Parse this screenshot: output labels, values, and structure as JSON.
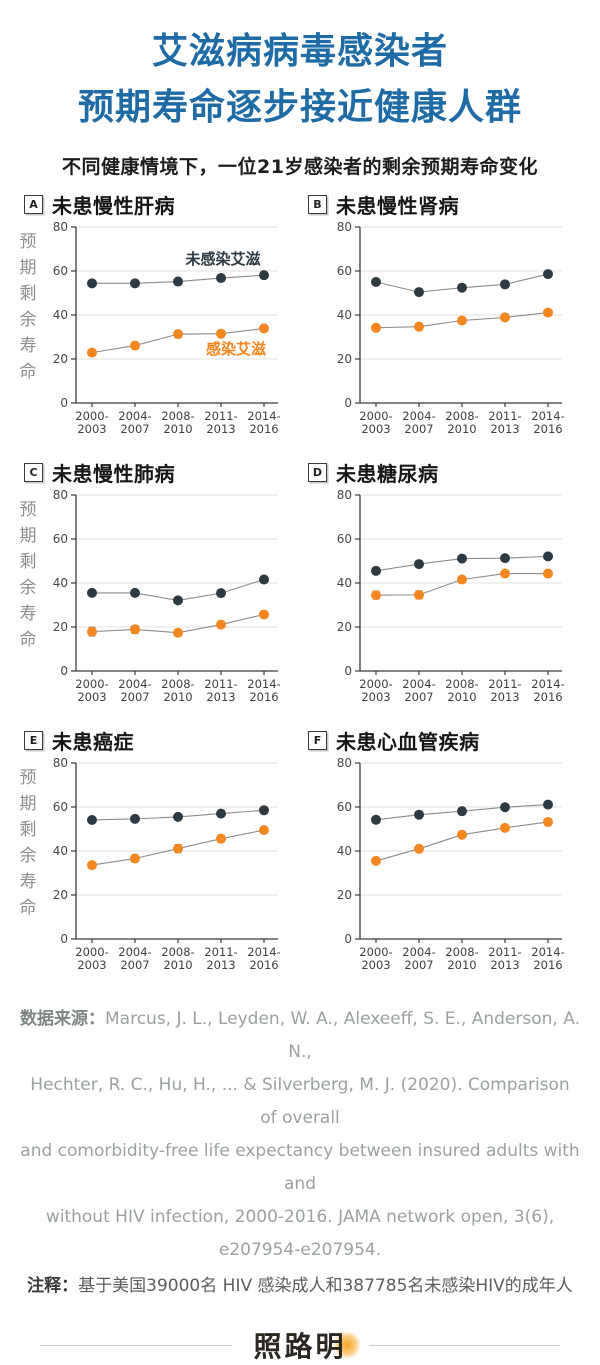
{
  "page": {
    "title_line1": "艾滋病病毒感染者",
    "title_line2": "预期寿命逐步接近健康人群",
    "subtitle": "不同健康情境下，一位21岁感染者的剩余预期寿命变化"
  },
  "colors": {
    "title_blue": "#1e6ba6",
    "uninfected": "#2d3a41",
    "infected": "#f58720",
    "series_line": "#8c8c8c",
    "error_bar": "#8c8c8c",
    "grid": "#e8e8e8",
    "axis": "#3b3b3b",
    "tick_label": "#474747"
  },
  "legend": {
    "uninfected_label": "未感染艾滋",
    "infected_label": "感染艾滋"
  },
  "axis": {
    "ylabel_chars": "预期剩余寿命",
    "ymax": 80,
    "yticks": [
      0,
      20,
      40,
      60,
      80
    ],
    "categories": [
      [
        "2000-",
        "2003"
      ],
      [
        "2004-",
        "2007"
      ],
      [
        "2008-",
        "2010"
      ],
      [
        "2011-",
        "2013"
      ],
      [
        "2014-",
        "2016"
      ]
    ]
  },
  "chart_data": [
    {
      "id": "A",
      "type": "line",
      "title": "未患慢性肝病",
      "show_ylabel": true,
      "show_legend": true,
      "xlabel": "",
      "ylabel": "预期剩余寿命",
      "ylim": [
        0,
        80
      ],
      "categories": [
        "2000-2003",
        "2004-2007",
        "2008-2010",
        "2011-2013",
        "2014-2016"
      ],
      "series": [
        {
          "name": "未感染艾滋",
          "values": [
            54.4,
            54.4,
            55.2,
            56.8,
            58.1
          ],
          "err": [
            0.6,
            0.6,
            0.6,
            0.6,
            0.6
          ]
        },
        {
          "name": "感染艾滋",
          "values": [
            22.9,
            26.1,
            31.3,
            31.5,
            33.9
          ],
          "err": [
            0.9,
            1.3,
            1.7,
            1.5,
            1.2
          ]
        }
      ]
    },
    {
      "id": "B",
      "type": "line",
      "title": "未患慢性肾病",
      "show_ylabel": false,
      "show_legend": false,
      "xlabel": "",
      "ylabel": "预期剩余寿命",
      "ylim": [
        0,
        80
      ],
      "categories": [
        "2000-2003",
        "2004-2007",
        "2008-2010",
        "2011-2013",
        "2014-2016"
      ],
      "series": [
        {
          "name": "未感染艾滋",
          "values": [
            55.0,
            50.4,
            52.4,
            53.9,
            58.6
          ],
          "err": [
            0.7,
            0.7,
            0.6,
            0.6,
            0.6
          ]
        },
        {
          "name": "感染艾滋",
          "values": [
            34.2,
            34.7,
            37.5,
            38.9,
            41.1
          ],
          "err": [
            1.5,
            1.2,
            1.3,
            1.2,
            1.2
          ]
        }
      ]
    },
    {
      "id": "C",
      "type": "line",
      "title": "未患慢性肺病",
      "show_ylabel": true,
      "show_legend": false,
      "xlabel": "",
      "ylabel": "预期剩余寿命",
      "ylim": [
        0,
        80
      ],
      "categories": [
        "2000-2003",
        "2004-2007",
        "2008-2010",
        "2011-2013",
        "2014-2016"
      ],
      "series": [
        {
          "name": "未感染艾滋",
          "values": [
            35.5,
            35.5,
            32.1,
            35.4,
            41.6
          ],
          "err": [
            1.0,
            1.0,
            1.0,
            1.0,
            1.0
          ]
        },
        {
          "name": "感染艾滋",
          "values": [
            17.9,
            18.9,
            17.4,
            21.1,
            25.7
          ],
          "err": [
            2.0,
            1.8,
            1.5,
            1.5,
            1.5
          ]
        }
      ]
    },
    {
      "id": "D",
      "type": "line",
      "title": "未患糖尿病",
      "show_ylabel": false,
      "show_legend": false,
      "xlabel": "",
      "ylabel": "预期剩余寿命",
      "ylim": [
        0,
        80
      ],
      "categories": [
        "2000-2003",
        "2004-2007",
        "2008-2010",
        "2011-2013",
        "2014-2016"
      ],
      "series": [
        {
          "name": "未感染艾滋",
          "values": [
            45.5,
            48.6,
            51.1,
            51.3,
            52.1
          ],
          "err": [
            0.7,
            0.7,
            0.6,
            0.6,
            0.6
          ]
        },
        {
          "name": "感染艾滋",
          "values": [
            34.5,
            34.6,
            41.6,
            44.3,
            44.3
          ],
          "err": [
            1.8,
            1.8,
            1.3,
            1.0,
            1.0
          ]
        }
      ]
    },
    {
      "id": "E",
      "type": "line",
      "title": "未患癌症",
      "show_ylabel": true,
      "show_legend": false,
      "xlabel": "",
      "ylabel": "预期剩余寿命",
      "ylim": [
        0,
        80
      ],
      "categories": [
        "2000-2003",
        "2004-2007",
        "2008-2010",
        "2011-2013",
        "2014-2016"
      ],
      "series": [
        {
          "name": "未感染艾滋",
          "values": [
            54.1,
            54.6,
            55.5,
            57.0,
            58.5
          ],
          "err": [
            0.6,
            0.6,
            0.6,
            0.6,
            0.6
          ]
        },
        {
          "name": "感染艾滋",
          "values": [
            33.6,
            36.6,
            41.1,
            45.6,
            49.5
          ],
          "err": [
            1.3,
            1.6,
            1.8,
            1.6,
            1.0
          ]
        }
      ]
    },
    {
      "id": "F",
      "type": "line",
      "title": "未患心血管疾病",
      "show_ylabel": false,
      "show_legend": false,
      "xlabel": "",
      "ylabel": "预期剩余寿命",
      "ylim": [
        0,
        80
      ],
      "categories": [
        "2000-2003",
        "2004-2007",
        "2008-2010",
        "2011-2013",
        "2014-2016"
      ],
      "series": [
        {
          "name": "未感染艾滋",
          "values": [
            54.2,
            56.5,
            58.1,
            59.9,
            61.1
          ],
          "err": [
            0.6,
            0.6,
            0.6,
            0.6,
            0.6
          ]
        },
        {
          "name": "感染艾滋",
          "values": [
            35.5,
            41.0,
            47.4,
            50.5,
            53.2
          ],
          "err": [
            1.5,
            1.3,
            1.2,
            1.3,
            1.0
          ]
        }
      ]
    }
  ],
  "footer": {
    "source_label": "数据来源：",
    "source_line1_rest": "Marcus, J. L., Leyden, W. A., Alexeeff, S. E., Anderson, A. N.,",
    "source_lines": [
      "Hechter, R. C., Hu, H., ... & Silverberg, M. J. (2020). Comparison of overall",
      "and comorbidity-free life expectancy between insured adults with and",
      "without HIV infection, 2000-2016. JAMA network open, 3(6),",
      "e207954-e207954."
    ],
    "note_label": "注释：",
    "note_text": "基于美国39000名 HIV 感染成人和387785名未感染HIV的成年人",
    "logo_text": "照路明"
  }
}
